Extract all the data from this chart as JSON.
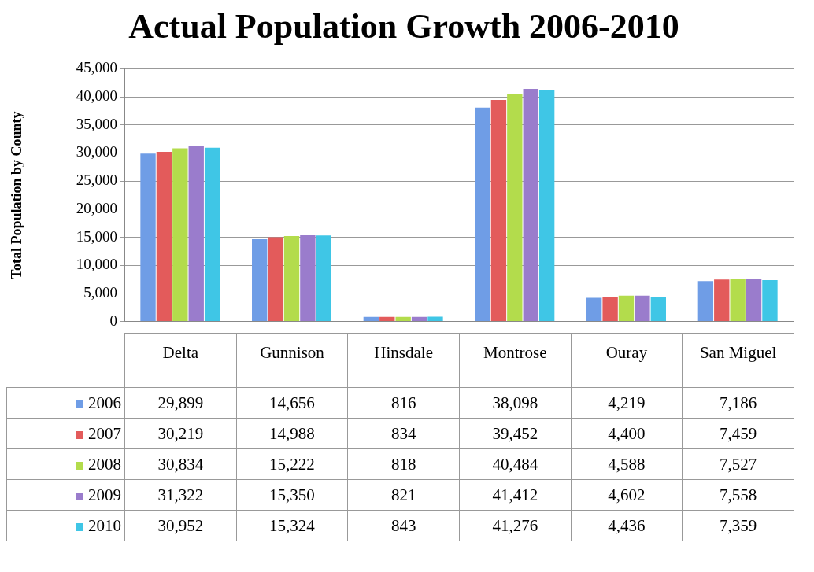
{
  "chart_data": {
    "type": "bar",
    "title": "Actual Population Growth 2006-2010",
    "ylabel": "Total Population by County",
    "categories": [
      "Delta",
      "Gunnison",
      "Hinsdale",
      "Montrose",
      "Ouray",
      "San Miguel"
    ],
    "series": [
      {
        "name": "2006",
        "color": "#6f9de6",
        "values": [
          29899,
          14656,
          816,
          38098,
          4219,
          7186
        ],
        "value_labels": [
          "29,899",
          "14,656",
          "816",
          "38,098",
          "4,219",
          "7,186"
        ]
      },
      {
        "name": "2007",
        "color": "#e35b5b",
        "values": [
          30219,
          14988,
          834,
          39452,
          4400,
          7459
        ],
        "value_labels": [
          "30,219",
          "14,988",
          "834",
          "39,452",
          "4,400",
          "7,459"
        ]
      },
      {
        "name": "2008",
        "color": "#b3dc4c",
        "values": [
          30834,
          15222,
          818,
          40484,
          4588,
          7527
        ],
        "value_labels": [
          "30,834",
          "15,222",
          "818",
          "40,484",
          "4,588",
          "7,527"
        ]
      },
      {
        "name": "2009",
        "color": "#9a7ccc",
        "values": [
          31322,
          15350,
          821,
          41412,
          4602,
          7558
        ],
        "value_labels": [
          "31,322",
          "15,350",
          "821",
          "41,412",
          "4,602",
          "7,558"
        ]
      },
      {
        "name": "2010",
        "color": "#3fc6e6",
        "values": [
          30952,
          15324,
          843,
          41276,
          4436,
          7359
        ],
        "value_labels": [
          "30,952",
          "15,324",
          "843",
          "41,276",
          "4,436",
          "7,359"
        ]
      }
    ],
    "ylim": [
      0,
      45000
    ],
    "yticks": [
      {
        "value": 0,
        "label": "0"
      },
      {
        "value": 5000,
        "label": "5,000"
      },
      {
        "value": 10000,
        "label": "10,000"
      },
      {
        "value": 15000,
        "label": "15,000"
      },
      {
        "value": 20000,
        "label": "20,000"
      },
      {
        "value": 25000,
        "label": "25,000"
      },
      {
        "value": 30000,
        "label": "30,000"
      },
      {
        "value": 35000,
        "label": "35,000"
      },
      {
        "value": 40000,
        "label": "40,000"
      },
      {
        "value": 45000,
        "label": "45,000"
      }
    ],
    "grid": "y",
    "legend": "bottom"
  }
}
